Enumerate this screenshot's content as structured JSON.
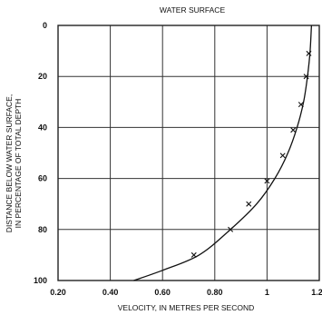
{
  "chart_data": {
    "type": "scatter",
    "title": "WATER SURFACE",
    "xlabel": "VELOCITY, IN METRES PER SECOND",
    "ylabel": [
      "DISTANCE BELOW WATER SURFACE,",
      "IN PERCENTAGE OF TOTAL DEPTH"
    ],
    "xlim": [
      0.2,
      1.2
    ],
    "ylim": [
      0,
      100
    ],
    "y_inverted": true,
    "grid": true,
    "x_ticks": [
      0.2,
      0.4,
      0.6,
      0.8,
      1.0,
      1.2
    ],
    "x_tick_labels": [
      "0.20",
      "0.40",
      "0.60",
      "0.80",
      "1",
      "1.20"
    ],
    "y_ticks": [
      0,
      20,
      40,
      60,
      80,
      100
    ],
    "y_tick_labels": [
      "0",
      "20",
      "40",
      "60",
      "80",
      "100"
    ],
    "series": [
      {
        "kind": "points",
        "marker": "x",
        "x": [
          1.16,
          1.15,
          1.13,
          1.1,
          1.06,
          1.0,
          0.93,
          0.86,
          0.72
        ],
        "y": [
          11,
          20,
          31,
          41,
          51,
          61,
          70,
          80,
          90
        ]
      },
      {
        "kind": "curve",
        "x": [
          1.17,
          1.165,
          1.155,
          1.14,
          1.115,
          1.08,
          1.03,
          0.96,
          0.86,
          0.74,
          0.6,
          0.49
        ],
        "y": [
          0,
          10,
          20,
          30,
          40,
          50,
          60,
          70,
          80,
          90,
          96,
          100
        ]
      }
    ]
  }
}
